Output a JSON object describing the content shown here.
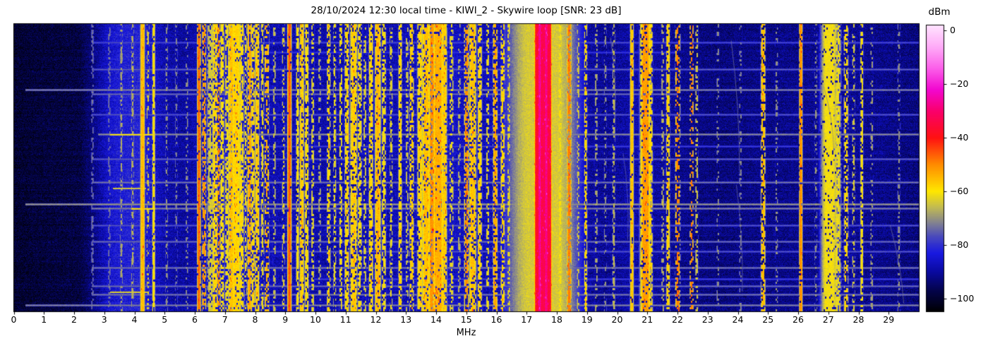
{
  "figure": {
    "title": "28/10/2024 12:30 local time - KIWI_2 - Skywire loop [SNR: 23 dB]",
    "snr_db": 23,
    "receiver": "KIWI_2",
    "antenna": "Skywire loop",
    "datetime_label": "28/10/2024 12:30 local time"
  },
  "chart_data": {
    "type": "heatmap",
    "subtype": "radio-spectrogram-waterfall",
    "title": "28/10/2024 12:30 local time - KIWI_2 - Skywire loop [SNR: 23 dB]",
    "xlabel": "MHz",
    "ylabel": "",
    "x_range_mhz": [
      0,
      30
    ],
    "x_tick_values": [
      0,
      1,
      2,
      3,
      4,
      5,
      6,
      7,
      8,
      9,
      10,
      11,
      12,
      13,
      14,
      15,
      16,
      17,
      18,
      19,
      20,
      21,
      22,
      23,
      24,
      25,
      26,
      27,
      28,
      29
    ],
    "x_ticks": [
      "0",
      "1",
      "2",
      "3",
      "4",
      "5",
      "6",
      "7",
      "8",
      "9",
      "10",
      "11",
      "12",
      "13",
      "14",
      "15",
      "16",
      "17",
      "18",
      "19",
      "20",
      "21",
      "22",
      "23",
      "24",
      "25",
      "26",
      "27",
      "28",
      "29"
    ],
    "y_ticks": [],
    "grid": false,
    "colorbar": {
      "label": "dBm",
      "position": "right",
      "tick_values": [
        0,
        -20,
        -40,
        -60,
        -80,
        -100
      ],
      "ticks": [
        "0",
        "−20",
        "−40",
        "−60",
        "−80",
        "−100"
      ],
      "range_dbm": [
        -105,
        2
      ]
    },
    "colormap_stops": [
      [
        -105,
        0,
        0,
        0
      ],
      [
        -102,
        2,
        2,
        30
      ],
      [
        -97,
        4,
        4,
        75
      ],
      [
        -90,
        10,
        10,
        160
      ],
      [
        -83,
        25,
        25,
        225
      ],
      [
        -77,
        72,
        72,
        190
      ],
      [
        -72,
        128,
        128,
        148
      ],
      [
        -66,
        193,
        186,
        84
      ],
      [
        -60,
        255,
        232,
        0
      ],
      [
        -50,
        255,
        140,
        0
      ],
      [
        -40,
        255,
        18,
        18
      ],
      [
        -30,
        250,
        0,
        108
      ],
      [
        -22,
        242,
        8,
        208
      ],
      [
        -14,
        252,
        96,
        234
      ],
      [
        -6,
        255,
        172,
        248
      ],
      [
        2,
        255,
        228,
        255
      ]
    ],
    "noise_floor_dbm": [
      [
        0,
        -100
      ],
      [
        0.8,
        -99
      ],
      [
        2.2,
        -98
      ],
      [
        2.7,
        -92
      ],
      [
        3.1,
        -86
      ],
      [
        3.5,
        -83
      ],
      [
        4.2,
        -82
      ],
      [
        4.6,
        -85
      ],
      [
        5.1,
        -89
      ],
      [
        5.7,
        -90
      ],
      [
        6.3,
        -87
      ],
      [
        7.0,
        -85
      ],
      [
        7.8,
        -86
      ],
      [
        8.6,
        -88
      ],
      [
        9.6,
        -88
      ],
      [
        10.4,
        -89
      ],
      [
        11.5,
        -88
      ],
      [
        12.6,
        -88
      ],
      [
        13.6,
        -87
      ],
      [
        14.6,
        -86
      ],
      [
        15.6,
        -88
      ],
      [
        16.6,
        -87
      ],
      [
        17.1,
        -85
      ],
      [
        17.6,
        -83
      ],
      [
        18.1,
        -86
      ],
      [
        18.6,
        -89
      ],
      [
        19.6,
        -91
      ],
      [
        20.6,
        -89
      ],
      [
        21.6,
        -90
      ],
      [
        22.4,
        -92
      ],
      [
        23.5,
        -93
      ],
      [
        24.6,
        -92
      ],
      [
        25.6,
        -92
      ],
      [
        26.6,
        -91
      ],
      [
        27.2,
        -89
      ],
      [
        28.0,
        -91
      ],
      [
        29.0,
        -92
      ],
      [
        30,
        -93
      ]
    ],
    "bands": [
      [
        2.62,
        0.015,
        -73,
        0.5
      ],
      [
        3.18,
        0.015,
        -72,
        0.4
      ],
      [
        3.58,
        0.02,
        -68,
        0.45
      ],
      [
        3.95,
        0.02,
        -67,
        0.5
      ],
      [
        4.28,
        0.03,
        -55,
        1
      ],
      [
        4.46,
        0.015,
        -64,
        0.4
      ],
      [
        4.65,
        0.02,
        -60,
        0.85
      ],
      [
        5.08,
        0.015,
        -70,
        0.35
      ],
      [
        5.4,
        0.015,
        -72,
        0.35
      ],
      [
        5.75,
        0.015,
        -70,
        0.3
      ],
      [
        6.15,
        0.022,
        -47,
        0.9
      ],
      [
        6.32,
        0.025,
        -51,
        0.55
      ],
      [
        6.55,
        0.06,
        -64,
        0.7
      ],
      [
        6.68,
        0.035,
        -58,
        0.7
      ],
      [
        6.8,
        0.025,
        -52,
        0.5
      ],
      [
        6.92,
        0.03,
        -60,
        0.65
      ],
      [
        7.08,
        0.03,
        -61,
        0.6
      ],
      [
        7.22,
        0.04,
        -56,
        0.85
      ],
      [
        7.38,
        0.07,
        -58,
        0.9
      ],
      [
        7.56,
        0.035,
        -59,
        0.7
      ],
      [
        7.7,
        0.02,
        -62,
        0.5
      ],
      [
        7.83,
        0.03,
        -53,
        0.75
      ],
      [
        7.95,
        0.02,
        -58,
        0.6
      ],
      [
        8.08,
        0.03,
        -57,
        0.8
      ],
      [
        8.25,
        0.02,
        -62,
        0.5
      ],
      [
        8.4,
        0.03,
        -54,
        0.5
      ],
      [
        8.65,
        0.02,
        -65,
        0.4
      ],
      [
        8.95,
        0.02,
        -63,
        0.45
      ],
      [
        9.15,
        0.025,
        -46,
        0.95
      ],
      [
        9.42,
        0.02,
        -60,
        0.7
      ],
      [
        9.56,
        0.03,
        -57,
        0.8
      ],
      [
        9.72,
        0.03,
        -60,
        0.7
      ],
      [
        9.92,
        0.02,
        -62,
        0.55
      ],
      [
        10.15,
        0.015,
        -66,
        0.35
      ],
      [
        10.45,
        0.025,
        -58,
        0.6
      ],
      [
        10.65,
        0.02,
        -62,
        0.5
      ],
      [
        10.85,
        0.02,
        -60,
        0.55
      ],
      [
        11.05,
        0.03,
        -58,
        0.7
      ],
      [
        11.28,
        0.05,
        -57,
        0.8
      ],
      [
        11.48,
        0.03,
        -60,
        0.6
      ],
      [
        11.65,
        0.02,
        -63,
        0.5
      ],
      [
        11.85,
        0.03,
        -58,
        0.7
      ],
      [
        12.08,
        0.04,
        -55,
        0.85
      ],
      [
        12.28,
        0.03,
        -60,
        0.6
      ],
      [
        12.52,
        0.02,
        -62,
        0.5
      ],
      [
        12.82,
        0.025,
        -58,
        0.7
      ],
      [
        13.05,
        0.02,
        -64,
        0.5
      ],
      [
        13.2,
        0.03,
        -57,
        0.6
      ],
      [
        13.48,
        0.04,
        -58,
        0.75
      ],
      [
        13.68,
        0.06,
        -56,
        0.85
      ],
      [
        13.87,
        0.04,
        -51,
        0.8
      ],
      [
        14.08,
        0.08,
        -54,
        0.9
      ],
      [
        14.28,
        0.04,
        -57,
        0.8
      ],
      [
        14.52,
        0.03,
        -62,
        0.5
      ],
      [
        14.78,
        0.02,
        -66,
        0.4
      ],
      [
        15.02,
        0.03,
        -51,
        0.6
      ],
      [
        15.22,
        0.05,
        -56,
        0.8
      ],
      [
        15.46,
        0.03,
        -58,
        0.7
      ],
      [
        15.72,
        0.02,
        -61,
        0.5
      ],
      [
        15.97,
        0.03,
        -53,
        0.65
      ],
      [
        16.22,
        0.03,
        -58,
        0.6
      ],
      [
        16.42,
        0.02,
        -62,
        0.5
      ],
      [
        16.75,
        0.015,
        -67,
        0.35
      ],
      [
        16.95,
        0.02,
        -66,
        0.4
      ],
      [
        17.55,
        0.5,
        -64,
        1
      ],
      [
        17.35,
        0.028,
        -37,
        1
      ],
      [
        17.45,
        0.028,
        -27,
        1
      ],
      [
        17.56,
        0.028,
        -33,
        1
      ],
      [
        17.66,
        0.028,
        -28,
        1
      ],
      [
        17.76,
        0.028,
        -35,
        1
      ],
      [
        18.12,
        0.03,
        -60,
        0.5
      ],
      [
        18.42,
        0.03,
        -49,
        0.7
      ],
      [
        18.72,
        0.02,
        -64,
        0.4
      ],
      [
        18.97,
        0.02,
        -58,
        0.6
      ],
      [
        19.32,
        0.02,
        -67,
        0.4
      ],
      [
        19.62,
        0.015,
        -70,
        0.3
      ],
      [
        19.9,
        0.02,
        -66,
        0.5
      ],
      [
        20.5,
        0.025,
        -56,
        0.9
      ],
      [
        20.95,
        0.07,
        -52,
        0.85
      ],
      [
        21.12,
        0.03,
        -58,
        0.6
      ],
      [
        21.52,
        0.02,
        -66,
        0.4
      ],
      [
        21.7,
        0.025,
        -57,
        0.7
      ],
      [
        22.02,
        0.03,
        -49,
        0.4
      ],
      [
        22.48,
        0.022,
        -48,
        0.35
      ],
      [
        22.65,
        0.02,
        -64,
        0.4
      ],
      [
        23.35,
        0.015,
        -70,
        0.3
      ],
      [
        24.1,
        0.015,
        -71,
        0.3
      ],
      [
        24.85,
        0.03,
        -55,
        0.7
      ],
      [
        25.3,
        0.015,
        -70,
        0.3
      ],
      [
        26.1,
        0.02,
        -50,
        0.9
      ],
      [
        26.6,
        0.015,
        -70,
        0.3
      ],
      [
        27.05,
        0.12,
        -61,
        0.9
      ],
      [
        27.32,
        0.05,
        -62,
        0.7
      ],
      [
        27.6,
        0.03,
        -58,
        0.5
      ],
      [
        27.85,
        0.02,
        -64,
        0.4
      ],
      [
        28.12,
        0.02,
        -60,
        0.6
      ],
      [
        28.45,
        0.015,
        -68,
        0.3
      ],
      [
        29.35,
        0.02,
        -70,
        0.4
      ]
    ],
    "streaks": [
      [
        0.065,
        -77,
        2.6,
        30
      ],
      [
        0.1,
        -79,
        6,
        22
      ],
      [
        0.16,
        -75,
        2.6,
        30
      ],
      [
        0.23,
        -72,
        0.4,
        30
      ],
      [
        0.245,
        -74,
        2.6,
        22
      ],
      [
        0.315,
        -76,
        2.6,
        30
      ],
      [
        0.385,
        -71,
        2.8,
        30
      ],
      [
        0.425,
        -78,
        6,
        26
      ],
      [
        0.47,
        -75,
        2.6,
        30
      ],
      [
        0.55,
        -73,
        2.6,
        30
      ],
      [
        0.625,
        -70,
        0.4,
        30
      ],
      [
        0.64,
        -72,
        2.6,
        30
      ],
      [
        0.7,
        -76,
        2.6,
        30
      ],
      [
        0.755,
        -74,
        2.6,
        30
      ],
      [
        0.79,
        -76,
        6,
        30
      ],
      [
        0.845,
        -73,
        2.6,
        30
      ],
      [
        0.885,
        -78,
        10,
        30
      ],
      [
        0.91,
        -74,
        2.6,
        30
      ],
      [
        0.94,
        -73,
        2.6,
        30
      ],
      [
        0.975,
        -72,
        0.4,
        30
      ]
    ],
    "yellow_segments": [
      [
        0.385,
        3.2,
        4.6,
        -60
      ],
      [
        0.57,
        3.3,
        4.4,
        -63
      ],
      [
        0.64,
        3.9,
        4.7,
        -59
      ],
      [
        0.93,
        3.2,
        4.5,
        -62
      ]
    ],
    "drift_traces": [
      [
        19.78,
        0.05,
        19.92,
        0.33,
        -71
      ],
      [
        23.78,
        0.06,
        24.06,
        0.52,
        -73
      ],
      [
        23.95,
        0.56,
        24.15,
        0.93,
        -74
      ],
      [
        26.85,
        0.22,
        27.18,
        0.44,
        -72
      ],
      [
        29.05,
        0.7,
        29.5,
        0.97,
        -73
      ],
      [
        20.2,
        0.45,
        20.35,
        0.75,
        -75
      ]
    ]
  }
}
